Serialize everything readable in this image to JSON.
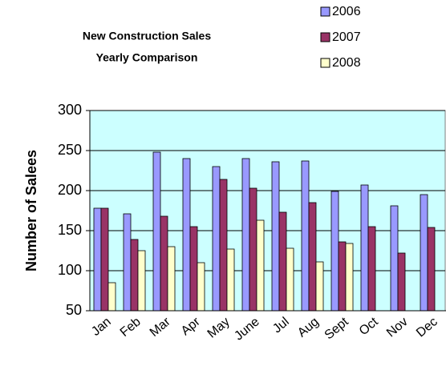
{
  "chart_data": {
    "type": "bar",
    "title": "New Construction Sales",
    "subtitle": "Yearly Comparison",
    "y_label": "Number of Salees",
    "categories": [
      "Jan",
      "Feb",
      "Mar",
      "Apr",
      "May",
      "June",
      "Jul",
      "Aug",
      "Sept",
      "Oct",
      "Nov",
      "Dec"
    ],
    "series": [
      {
        "name": "2006",
        "color": "#9999ff",
        "values": [
          178,
          171,
          248,
          240,
          230,
          240,
          236,
          237,
          199,
          207,
          181,
          195
        ]
      },
      {
        "name": "2007",
        "color": "#993366",
        "values": [
          178,
          139,
          168,
          155,
          214,
          203,
          173,
          185,
          136,
          155,
          122,
          154
        ]
      },
      {
        "name": "2008",
        "color": "#ffffcc",
        "values": [
          85,
          125,
          130,
          110,
          127,
          163,
          128,
          111,
          134,
          null,
          null,
          null
        ]
      }
    ],
    "ylim": [
      50,
      300
    ],
    "yticks": [
      50,
      100,
      150,
      200,
      250,
      300
    ],
    "grid": true,
    "plot_background": "#ccffff",
    "legend": "top-right"
  }
}
